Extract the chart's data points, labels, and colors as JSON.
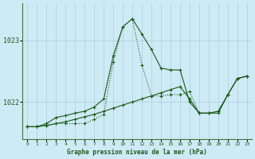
{
  "title": "Graphe pression niveau de la mer (hPa)",
  "background_color": "#ceeaf5",
  "grid_color": "#aacfdf",
  "line_color": "#1a5c1a",
  "xlim": [
    -0.5,
    23.5
  ],
  "ylim": [
    1021.4,
    1023.6
  ],
  "yticks": [
    1022,
    1023
  ],
  "xticks": [
    0,
    1,
    2,
    3,
    4,
    5,
    6,
    7,
    8,
    9,
    10,
    11,
    12,
    13,
    14,
    15,
    16,
    17,
    18,
    19,
    20,
    21,
    22,
    23
  ],
  "series1_x": [
    0,
    1,
    2,
    3,
    4,
    5,
    6,
    7,
    8,
    9,
    10,
    11,
    12,
    13,
    14,
    15,
    16,
    17,
    18,
    19,
    20,
    21,
    22,
    23
  ],
  "series1_y": [
    1021.6,
    1021.6,
    1021.65,
    1021.75,
    1021.78,
    1021.82,
    1021.85,
    1021.92,
    1022.05,
    1022.75,
    1023.22,
    1023.35,
    1023.1,
    1022.85,
    1022.55,
    1022.52,
    1022.52,
    1022.0,
    1021.82,
    1021.82,
    1021.82,
    1022.12,
    1022.38,
    1022.42
  ],
  "series2_x": [
    0,
    1,
    2,
    3,
    4,
    5,
    6,
    7,
    8,
    9,
    10,
    11,
    12,
    13,
    14,
    15,
    16,
    17,
    18,
    19,
    20,
    21,
    22,
    23
  ],
  "series2_y": [
    1021.6,
    1021.6,
    1021.62,
    1021.65,
    1021.68,
    1021.72,
    1021.76,
    1021.8,
    1021.85,
    1021.9,
    1021.95,
    1022.0,
    1022.05,
    1022.1,
    1022.15,
    1022.2,
    1022.25,
    1022.05,
    1021.82,
    1021.82,
    1021.85,
    1022.12,
    1022.38,
    1022.42
  ],
  "series3_x": [
    0,
    1,
    2,
    3,
    4,
    5,
    6,
    7,
    8,
    9,
    10,
    11,
    12,
    13,
    14,
    15,
    16,
    17,
    18,
    19,
    20,
    21,
    22,
    23
  ],
  "series3_y": [
    1021.6,
    1021.6,
    1021.62,
    1021.65,
    1021.65,
    1021.65,
    1021.65,
    1021.72,
    1021.8,
    1022.65,
    1023.22,
    1023.35,
    1022.6,
    1022.1,
    1022.1,
    1022.12,
    1022.12,
    1022.17,
    1021.82,
    1021.82,
    1021.85,
    1022.12,
    1022.38,
    1022.42
  ]
}
